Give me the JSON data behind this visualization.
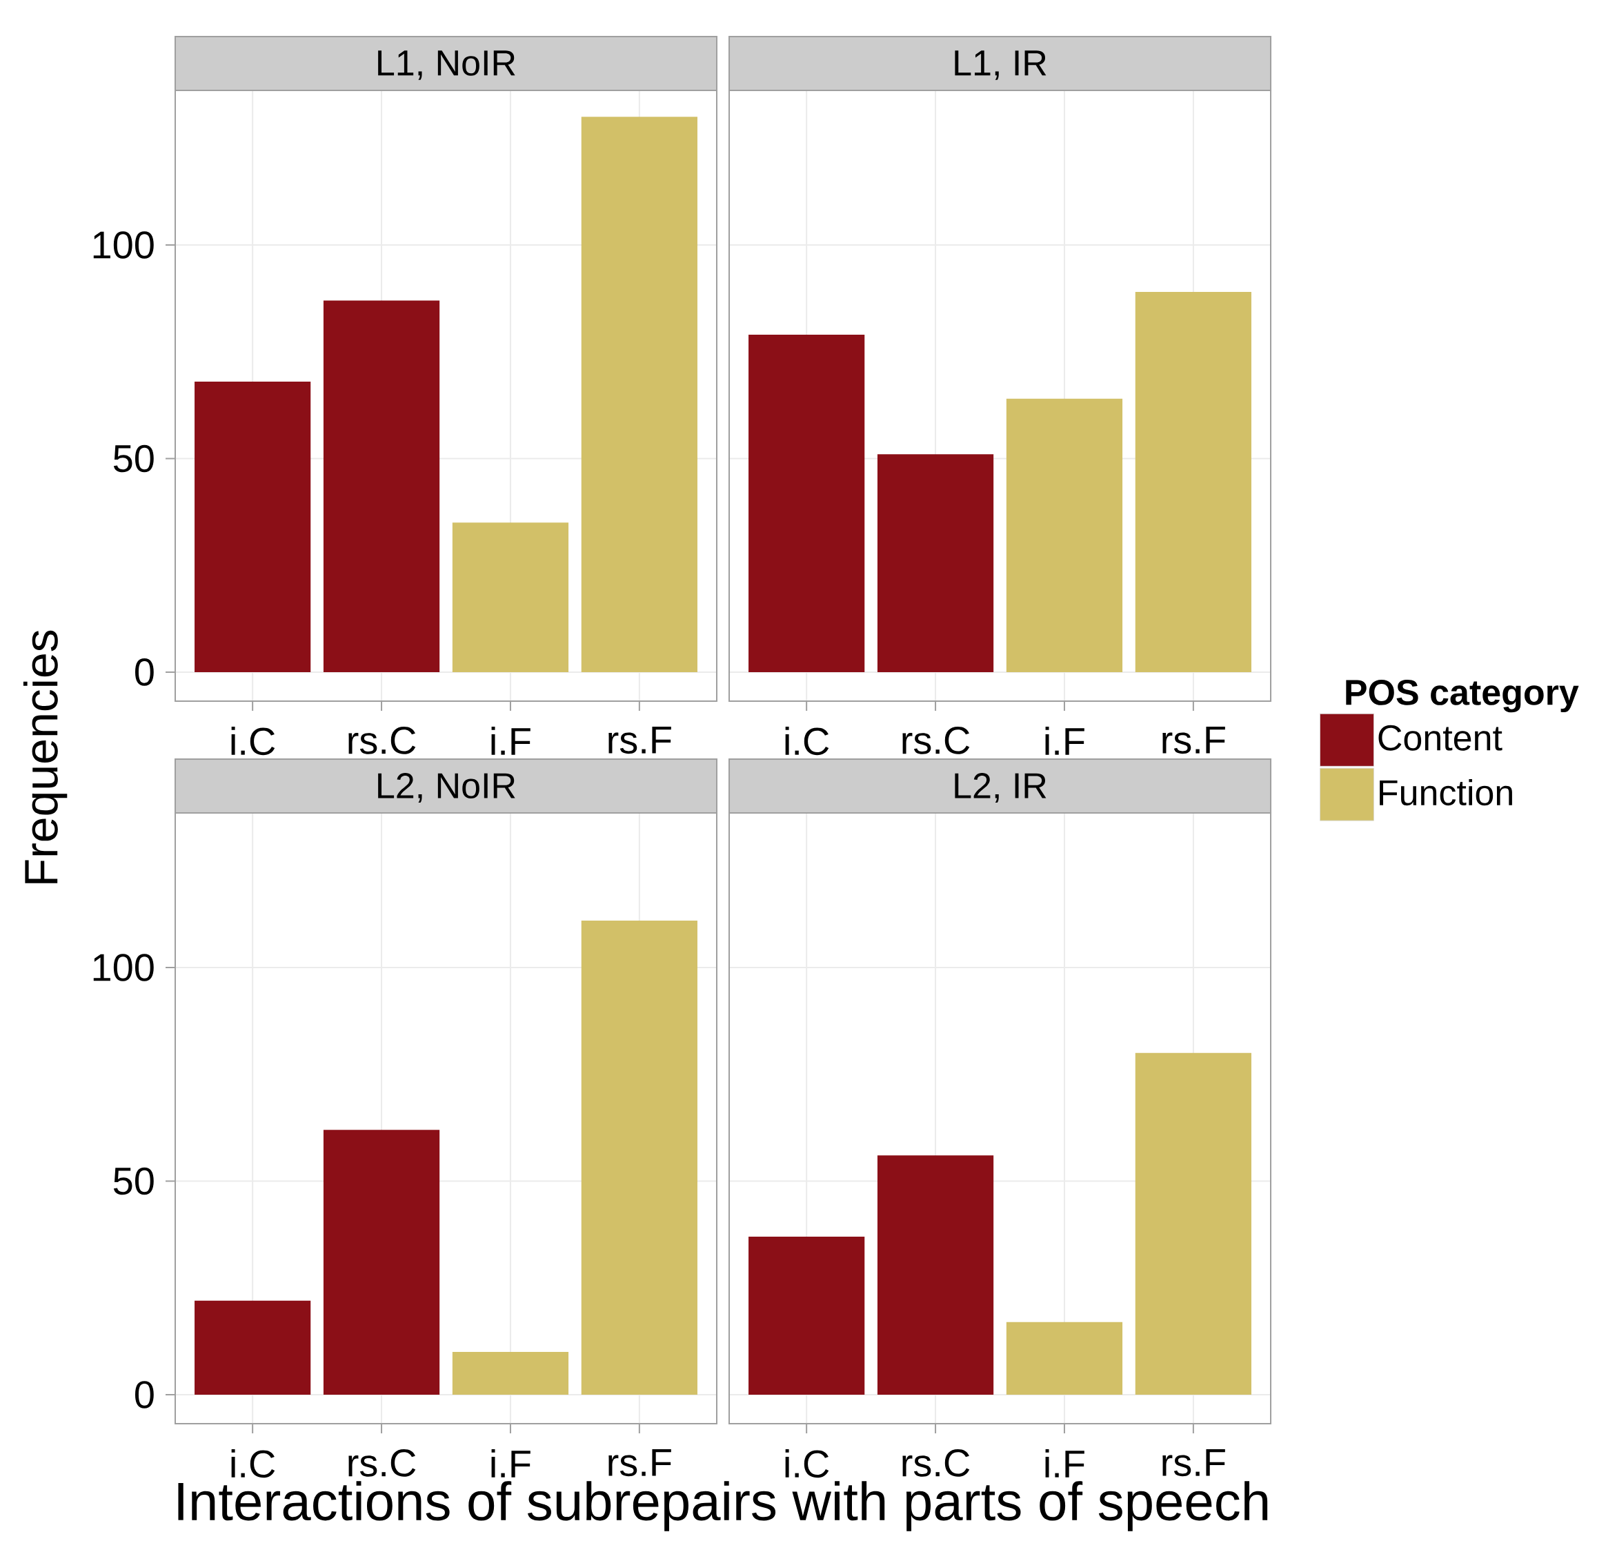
{
  "chart_data": [
    {
      "type": "bar",
      "title": "L1, NoIR",
      "categories": [
        "i.C",
        "rs.C",
        "i.F",
        "rs.F"
      ],
      "ylabel": "Frequencies",
      "series": [
        {
          "color": "#8b0f17",
          "values": [
            68,
            87,
            null,
            null
          ]
        },
        {
          "color": "#d2c068",
          "values": [
            null,
            null,
            35,
            130
          ]
        }
      ],
      "ylim": [
        -6.8,
        136.2
      ],
      "yticks": [
        0,
        50,
        100
      ],
      "grid": true
    },
    {
      "type": "bar",
      "title": "L1, IR",
      "categories": [
        "i.C",
        "rs.C",
        "i.F",
        "rs.F"
      ],
      "legend": "right",
      "legend_title": "POS category",
      "series": [
        {
          "name": "Content",
          "color": "#8b0f17",
          "values": [
            79,
            51,
            null,
            null
          ]
        },
        {
          "name": "Function",
          "color": "#d2c068",
          "values": [
            null,
            null,
            64,
            89
          ]
        }
      ],
      "ylim": [
        -6.8,
        136.2
      ],
      "yticks": [
        0,
        50,
        100
      ],
      "grid": true,
      "tick_labels": "x"
    },
    {
      "type": "bar",
      "title": "L2, NoIR",
      "categories": [
        "i.C",
        "rs.C",
        "i.F",
        "rs.F"
      ],
      "xlabel": "Interactions of subrepairs with parts of speech",
      "series": [
        {
          "color": "#8b0f17",
          "values": [
            22,
            62,
            null,
            null
          ]
        },
        {
          "color": "#d2c068",
          "values": [
            null,
            null,
            10,
            111
          ]
        }
      ],
      "ylim": [
        -6.8,
        136.2
      ],
      "yticks": [
        0,
        50,
        100
      ],
      "grid": true
    },
    {
      "type": "bar",
      "title": "L2, IR",
      "categories": [
        "i.C",
        "rs.C",
        "i.F",
        "rs.F"
      ],
      "series": [
        {
          "color": "#8b0f17",
          "values": [
            37,
            56,
            null,
            null
          ]
        },
        {
          "color": "#d2c068",
          "values": [
            null,
            null,
            17,
            80
          ]
        }
      ],
      "ylim": [
        -6.8,
        136.2
      ],
      "yticks": [
        0,
        50,
        100
      ],
      "grid": true,
      "tick_labels": "x"
    }
  ]
}
